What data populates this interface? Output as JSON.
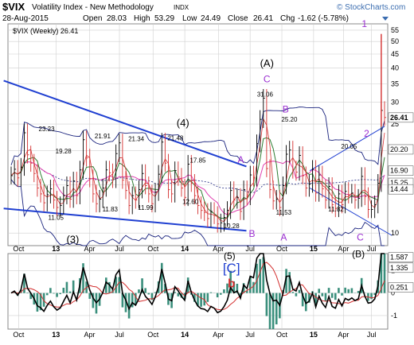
{
  "header": {
    "symbol": "$VIX",
    "name": "Volatility Index - New Methodology",
    "exchange": "INDX",
    "watermark": "© StockCharts.com",
    "date": "28-Aug-2015",
    "open_label": "Open",
    "open": "28.03",
    "high_label": "High",
    "high": "53.29",
    "low_label": "Low",
    "low": "24.49",
    "close_label": "Close",
    "close": "26.41",
    "chg_label": "Chg",
    "chg": "-1.62 (-5.78%)"
  },
  "legend": {
    "price_series": "$VIX (Weekly) 26.41"
  },
  "chart_data": [
    {
      "type": "bar",
      "description_scale": "log",
      "x_tick_labels": [
        "Oct",
        "13",
        "Apr",
        "Jul",
        "Oct",
        "14",
        "Apr",
        "Jul",
        "Oct",
        "15",
        "Apr",
        "Jul"
      ],
      "y_tick_labels": [
        "10",
        "15",
        "20",
        "25",
        "30",
        "35",
        "40",
        "45",
        "50",
        "55"
      ],
      "ylim": [
        9,
        58
      ],
      "right_value_labels": [
        {
          "text": "26.41",
          "value": 26.41,
          "bg": "#ffffff",
          "fg": "#000000"
        },
        {
          "text": "20.20",
          "value": 20.2,
          "bg": "#ffffff",
          "fg": "#000000"
        },
        {
          "text": "16.90",
          "value": 16.9,
          "bg": "#ffffff",
          "fg": "#000000"
        },
        {
          "text": "15.25",
          "value": 15.25,
          "bg": "#ffffff",
          "fg": "#000000"
        },
        {
          "text": "14.44",
          "value": 14.44,
          "bg": "#ffffff",
          "fg": "#000000"
        }
      ],
      "price_labels": [
        {
          "text": "23.23",
          "t": 0.095,
          "v": 23.23
        },
        {
          "text": "19.28",
          "t": 0.14,
          "v": 19.28
        },
        {
          "text": "11.05",
          "t": 0.12,
          "v": 11.05
        },
        {
          "text": "21.91",
          "t": 0.245,
          "v": 21.91
        },
        {
          "text": "21.34",
          "t": 0.335,
          "v": 21.34
        },
        {
          "text": "11.83",
          "t": 0.265,
          "v": 11.83
        },
        {
          "text": "11.99",
          "t": 0.36,
          "v": 11.99
        },
        {
          "text": "21.48",
          "t": 0.44,
          "v": 21.48
        },
        {
          "text": "17.85",
          "t": 0.5,
          "v": 17.85
        },
        {
          "text": "12.60",
          "t": 0.48,
          "v": 12.6
        },
        {
          "text": "10.28",
          "t": 0.59,
          "v": 10.28
        },
        {
          "text": "31.06",
          "t": 0.68,
          "v": 31.06
        },
        {
          "text": "25.20",
          "t": 0.745,
          "v": 25.2
        },
        {
          "text": "11.53",
          "t": 0.73,
          "v": 11.53
        },
        {
          "text": "20.05",
          "t": 0.905,
          "v": 20.05
        },
        {
          "text": "11.82",
          "t": 0.87,
          "v": 11.82
        }
      ],
      "wave_labels": [
        {
          "text": "(3)",
          "t": 0.165,
          "v": 9.2,
          "color": "#000000"
        },
        {
          "text": "(4)",
          "t": 0.46,
          "v": 24.5,
          "color": "#000000"
        },
        {
          "text": "(A)",
          "t": 0.685,
          "v": 40.5,
          "color": "#000000"
        },
        {
          "text": "C",
          "t": 0.685,
          "v": 35.5,
          "color": "#9b2fd1"
        },
        {
          "text": "B",
          "t": 0.735,
          "v": 27.5,
          "color": "#9b2fd1"
        },
        {
          "text": "A",
          "t": 0.615,
          "v": 18.0,
          "color": "#9b2fd1"
        },
        {
          "text": "B",
          "t": 0.645,
          "v": 9.7,
          "color": "#9b2fd1"
        },
        {
          "text": "A",
          "t": 0.73,
          "v": 9.4,
          "color": "#9b2fd1"
        },
        {
          "text": "C",
          "t": 0.935,
          "v": 9.4,
          "color": "#9b2fd1"
        },
        {
          "text": "1",
          "t": 0.946,
          "v": 56.5,
          "color": "#9b2fd1"
        },
        {
          "text": "2",
          "t": 0.952,
          "v": 22.5,
          "color": "#9b2fd1"
        }
      ],
      "series": [
        {
          "name": "$VIX (Weekly)",
          "color": "#000000",
          "values": [
            16.2,
            17.1,
            15.9,
            17.4,
            23.23,
            19.3,
            18.0,
            16.5,
            14.6,
            13.9,
            12.9,
            13.8,
            14.5,
            13.2,
            12.4,
            12.6,
            13.7,
            14.9,
            13.3,
            15.5,
            13.7,
            17.0,
            21.91,
            18.8,
            15.8,
            13.9,
            12.8,
            13.3,
            14.6,
            17.0,
            16.6,
            15.7,
            19.5,
            21.34,
            15.6,
            14.3,
            12.6,
            13.7,
            13.2,
            14.4,
            16.5,
            14.9,
            13.9,
            12.8,
            14.1,
            16.4,
            21.48,
            18.0,
            14.4,
            13.9,
            16.9,
            16.0,
            14.6,
            13.5,
            17.85,
            15.2,
            13.7,
            12.6,
            12.1,
            11.9,
            11.3,
            12.0,
            11.6,
            10.8,
            10.9,
            11.4,
            12.1,
            14.3,
            13.2,
            13.5,
            12.0,
            14.4,
            13.6,
            16.3,
            15.9,
            21.2,
            26.0,
            31.06,
            17.2,
            14.4,
            13.1,
            13.3,
            12.4,
            14.9,
            19.4,
            20.1,
            17.0,
            16.7,
            19.2,
            16.2,
            14.6,
            15.1,
            17.1,
            14.0,
            16.3,
            14.5,
            13.2,
            14.8,
            12.7,
            12.3,
            13.9,
            12.7,
            14.2,
            13.8,
            14.0,
            13.2,
            13.4,
            16.1,
            13.6,
            12.2,
            12.2,
            12.7,
            15.2,
            28.03,
            26.41
          ]
        }
      ],
      "overlays": [
        {
          "name": "upper-band",
          "color": "#1a237e"
        },
        {
          "name": "lower-band",
          "color": "#1a237e"
        },
        {
          "name": "ma-dotted",
          "color": "#1a237e"
        },
        {
          "name": "ma-pink",
          "color": "#e040b0"
        },
        {
          "name": "ma-green",
          "color": "#2e7d32"
        },
        {
          "name": "ma-red",
          "color": "#d32f2f"
        },
        {
          "name": "trendline",
          "color": "#1f3fd1"
        }
      ]
    },
    {
      "type": "line",
      "name": "lower-panel",
      "y_tick_labels": [
        "-1",
        "0",
        "1"
      ],
      "right_value_labels": [
        {
          "text": "1.587",
          "value": 1.587
        },
        {
          "text": "1.335",
          "value": 1.335
        },
        {
          "text": "0.251",
          "value": 0.251
        }
      ],
      "wave_labels": [
        {
          "text": "(5)",
          "t": 0.585,
          "v": 1.5,
          "color": "#000000"
        },
        {
          "text": "[C]",
          "t": 0.59,
          "v": 0.9,
          "color": "#1f3fd1"
        },
        {
          "text": "b",
          "t": 0.59,
          "v": 0.25,
          "color": "#d32f2f"
        },
        {
          "text": "(B)",
          "t": 0.93,
          "v": 1.6,
          "color": "#000000"
        }
      ],
      "x_tick_labels": [
        "Oct",
        "13",
        "Apr",
        "Jul",
        "Oct",
        "14",
        "Apr",
        "Jul",
        "Oct",
        "15",
        "Apr",
        "Jul"
      ]
    }
  ],
  "colors": {
    "accent": "#1f3fd1",
    "grid": "#cfcfcf",
    "up_bar": "#000000",
    "down_bar": "#d32f2f",
    "histogram": "#3a8f7c"
  }
}
